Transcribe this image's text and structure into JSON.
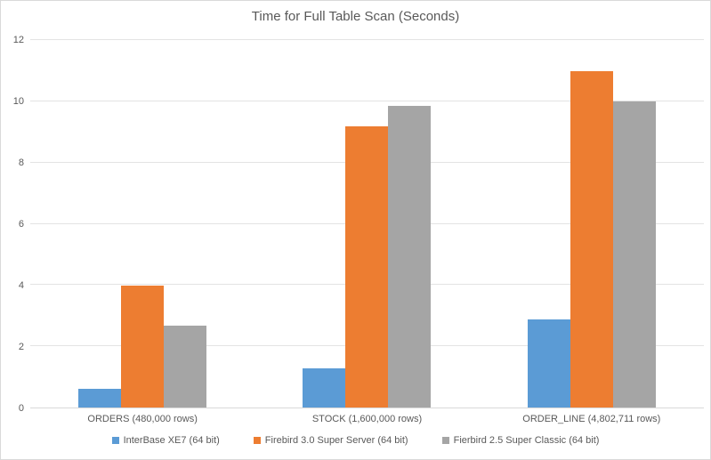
{
  "chart_data": {
    "type": "bar",
    "title": "Time for Full Table Scan (Seconds)",
    "xlabel": "",
    "ylabel": "",
    "categories": [
      "ORDERS (480,000 rows)",
      "STOCK (1,600,000 rows)",
      "ORDER_LINE (4,802,711 rows)"
    ],
    "series": [
      {
        "name": "InterBase XE7 (64 bit)",
        "color": "#5B9BD5",
        "values": [
          0.62,
          1.27,
          2.88
        ]
      },
      {
        "name": "Firebird 3.0 Super Server (64 bit)",
        "color": "#ED7D31",
        "values": [
          3.97,
          9.18,
          10.98
        ]
      },
      {
        "name": "Fierbird 2.5 Super Classic (64 bit)",
        "color": "#A5A5A5",
        "values": [
          2.67,
          9.84,
          10.01
        ]
      }
    ],
    "ylim": [
      0,
      12
    ],
    "yticks": [
      0,
      2,
      4,
      6,
      8,
      10,
      12
    ],
    "ytick_labels": [
      "0",
      "2",
      "4",
      "6",
      "8",
      "10",
      "12"
    ],
    "grid": true,
    "legend_position": "bottom",
    "colors": {
      "text": "#595959",
      "gridline": "#E3E3E3",
      "axis_line": "#D9D9D9",
      "chart_border": "#D9D9D9",
      "background": "#FFFFFF"
    }
  }
}
